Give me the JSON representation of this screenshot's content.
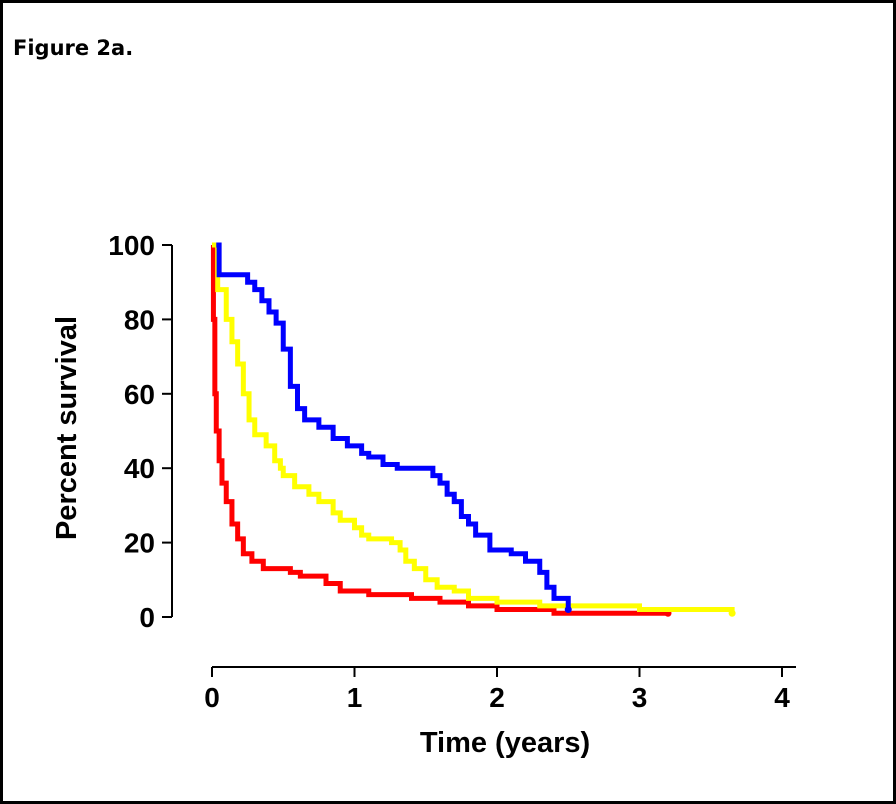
{
  "figure_label": "Figure 2a.",
  "chart_data": {
    "type": "line",
    "step": true,
    "title": "",
    "xlabel": "Time (years)",
    "ylabel": "Percent survival",
    "xlim": [
      0,
      4
    ],
    "ylim": [
      0,
      100
    ],
    "xticks": [
      0,
      1,
      2,
      3,
      4
    ],
    "yticks": [
      0,
      20,
      40,
      60,
      80,
      100
    ],
    "grid": false,
    "series": [
      {
        "color": "#ff0000",
        "points": [
          [
            0,
            100
          ],
          [
            0.01,
            80
          ],
          [
            0.02,
            60
          ],
          [
            0.03,
            50
          ],
          [
            0.05,
            42
          ],
          [
            0.07,
            36
          ],
          [
            0.1,
            31
          ],
          [
            0.14,
            25
          ],
          [
            0.18,
            21
          ],
          [
            0.22,
            17
          ],
          [
            0.28,
            15
          ],
          [
            0.36,
            13
          ],
          [
            0.55,
            12
          ],
          [
            0.62,
            11
          ],
          [
            0.8,
            9
          ],
          [
            0.9,
            7
          ],
          [
            1.1,
            6
          ],
          [
            1.4,
            5
          ],
          [
            1.6,
            4
          ],
          [
            1.8,
            3
          ],
          [
            2.0,
            2
          ],
          [
            2.4,
            1
          ],
          [
            3.2,
            1
          ]
        ]
      },
      {
        "color": "#ffff00",
        "points": [
          [
            0,
            100
          ],
          [
            0.04,
            88
          ],
          [
            0.1,
            80
          ],
          [
            0.14,
            74
          ],
          [
            0.18,
            68
          ],
          [
            0.22,
            60
          ],
          [
            0.26,
            53
          ],
          [
            0.3,
            49
          ],
          [
            0.38,
            46
          ],
          [
            0.44,
            42
          ],
          [
            0.48,
            40
          ],
          [
            0.5,
            38
          ],
          [
            0.58,
            35
          ],
          [
            0.68,
            33
          ],
          [
            0.75,
            31
          ],
          [
            0.85,
            28
          ],
          [
            0.9,
            26
          ],
          [
            1.0,
            24
          ],
          [
            1.05,
            22
          ],
          [
            1.1,
            21
          ],
          [
            1.26,
            20
          ],
          [
            1.32,
            18
          ],
          [
            1.36,
            15
          ],
          [
            1.42,
            13
          ],
          [
            1.5,
            10
          ],
          [
            1.58,
            8
          ],
          [
            1.7,
            7
          ],
          [
            1.8,
            5
          ],
          [
            2.0,
            4
          ],
          [
            2.3,
            3
          ],
          [
            2.8,
            3
          ],
          [
            3.0,
            2
          ],
          [
            3.65,
            1
          ]
        ]
      },
      {
        "color": "#0000ff",
        "points": [
          [
            0.03,
            100
          ],
          [
            0.05,
            92
          ],
          [
            0.2,
            92
          ],
          [
            0.25,
            90
          ],
          [
            0.3,
            88
          ],
          [
            0.35,
            85
          ],
          [
            0.4,
            82
          ],
          [
            0.45,
            79
          ],
          [
            0.5,
            72
          ],
          [
            0.55,
            62
          ],
          [
            0.6,
            56
          ],
          [
            0.65,
            53
          ],
          [
            0.75,
            51
          ],
          [
            0.85,
            48
          ],
          [
            0.95,
            46
          ],
          [
            1.05,
            44
          ],
          [
            1.1,
            43
          ],
          [
            1.2,
            41
          ],
          [
            1.3,
            40
          ],
          [
            1.55,
            38
          ],
          [
            1.6,
            36
          ],
          [
            1.65,
            33
          ],
          [
            1.7,
            31
          ],
          [
            1.75,
            27
          ],
          [
            1.8,
            25
          ],
          [
            1.85,
            22
          ],
          [
            1.95,
            18
          ],
          [
            2.1,
            17
          ],
          [
            2.2,
            15
          ],
          [
            2.3,
            12
          ],
          [
            2.35,
            8
          ],
          [
            2.4,
            5
          ],
          [
            2.5,
            2
          ]
        ]
      }
    ]
  }
}
